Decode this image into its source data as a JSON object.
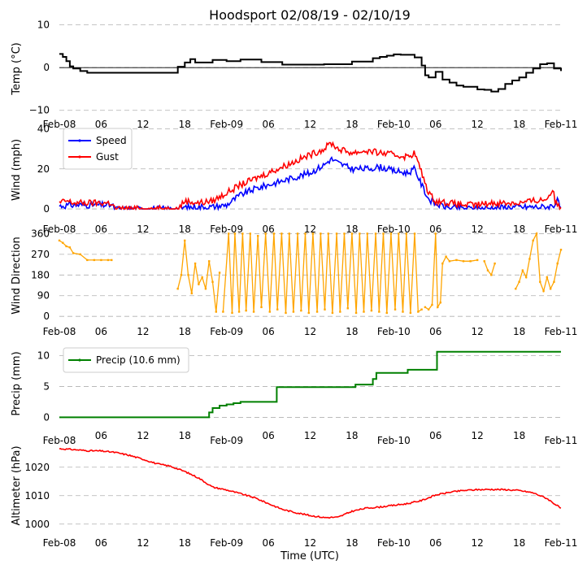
{
  "figure": {
    "title": "Hoodsport 02/08/19 - 02/10/19",
    "xlabel": "Time (UTC)"
  },
  "time_axis": {
    "x_range_hours": [
      0,
      72
    ],
    "ticks": [
      {
        "h": 0,
        "label": "Feb-08",
        "kind": "date"
      },
      {
        "h": 6,
        "label": "06",
        "kind": "hour"
      },
      {
        "h": 12,
        "label": "12",
        "kind": "hour"
      },
      {
        "h": 18,
        "label": "18",
        "kind": "hour"
      },
      {
        "h": 24,
        "label": "Feb-09",
        "kind": "date"
      },
      {
        "h": 30,
        "label": "06",
        "kind": "hour"
      },
      {
        "h": 36,
        "label": "12",
        "kind": "hour"
      },
      {
        "h": 42,
        "label": "18",
        "kind": "hour"
      },
      {
        "h": 48,
        "label": "Feb-10",
        "kind": "date"
      },
      {
        "h": 54,
        "label": "06",
        "kind": "hour"
      },
      {
        "h": 60,
        "label": "12",
        "kind": "hour"
      },
      {
        "h": 66,
        "label": "18",
        "kind": "hour"
      },
      {
        "h": 72,
        "label": "Feb-11",
        "kind": "date"
      }
    ]
  },
  "chart_data": [
    {
      "type": "line",
      "ylabel": "Temp (°C)",
      "ylim": [
        -11,
        10.5
      ],
      "yticks": [
        {
          "v": -10,
          "label": "−10"
        },
        {
          "v": 0,
          "label": "0"
        },
        {
          "v": 10,
          "label": "10"
        }
      ],
      "hline": 0,
      "step": true,
      "series": [
        {
          "name": "Temperature",
          "color": "#000000",
          "x": [
            0,
            0.5,
            1,
            1.5,
            2,
            3,
            4,
            16,
            17,
            18,
            18.8,
            19.5,
            22,
            24,
            26,
            29,
            32,
            38,
            42,
            45,
            46,
            47,
            48,
            49,
            50,
            51,
            52,
            52.5,
            53,
            54,
            55,
            56,
            57,
            58,
            60,
            61,
            62,
            63,
            64,
            65,
            66,
            67,
            68,
            69,
            70,
            71,
            72
          ],
          "values": [
            3.2,
            2.5,
            1.5,
            0.3,
            -0.2,
            -0.8,
            -1.2,
            -1.2,
            0.2,
            1.2,
            2.0,
            1.2,
            1.8,
            1.5,
            1.9,
            1.3,
            0.7,
            0.8,
            1.4,
            2.2,
            2.5,
            2.8,
            3.1,
            3.0,
            3.0,
            2.4,
            0.5,
            -1.8,
            -2.3,
            -1.0,
            -2.8,
            -3.5,
            -4.2,
            -4.5,
            -5.1,
            -5.2,
            -5.6,
            -5.0,
            -3.8,
            -3.0,
            -2.3,
            -1.2,
            -0.2,
            0.8,
            1.0,
            -0.2,
            -0.8
          ]
        }
      ]
    },
    {
      "type": "line",
      "ylabel": "Wind (mph)",
      "ylim": [
        -2,
        41
      ],
      "yticks": [
        {
          "v": 0,
          "label": "0"
        },
        {
          "v": 20,
          "label": "20"
        },
        {
          "v": 40,
          "label": "40"
        }
      ],
      "legend": "top-left",
      "noise": 1.6,
      "series": [
        {
          "name": "Speed",
          "color": "#0000ff",
          "marker": true,
          "x": [
            0,
            2,
            6,
            7.5,
            8,
            17,
            18,
            20,
            22,
            24,
            26,
            28,
            30,
            32,
            34,
            36,
            38,
            39,
            40,
            42,
            44,
            46,
            48,
            50,
            51,
            52,
            53,
            54,
            56,
            58,
            60,
            62,
            64,
            66,
            68,
            70,
            71,
            71.5,
            72
          ],
          "values": [
            1.5,
            2,
            2,
            2,
            0,
            0,
            0.8,
            1,
            1,
            2,
            7,
            10,
            12,
            14,
            16,
            18,
            22,
            25,
            23,
            20,
            20,
            21,
            19,
            18,
            20,
            12,
            5,
            2.5,
            0.5,
            0.3,
            0.2,
            0.5,
            0.8,
            1,
            1,
            1,
            2,
            4,
            0
          ]
        },
        {
          "name": "Gust",
          "color": "#ff0000",
          "marker": true,
          "x": [
            0,
            1,
            2,
            6,
            7.5,
            8,
            17,
            18,
            20,
            22,
            24,
            26,
            28,
            30,
            32,
            34,
            36,
            38,
            39,
            40,
            42,
            44,
            46,
            48,
            50,
            51,
            52,
            53,
            54,
            56,
            58,
            60,
            62,
            64,
            66,
            68,
            70,
            70.8,
            71.2,
            72
          ],
          "values": [
            3,
            4,
            3,
            3,
            3,
            0,
            0,
            4,
            3,
            4,
            8,
            12,
            15,
            18,
            21,
            24,
            27,
            30,
            33,
            30,
            28,
            29,
            28,
            27,
            26,
            28,
            18,
            8,
            4,
            3,
            2,
            2,
            3,
            3,
            3,
            4,
            5,
            10,
            3,
            1
          ]
        }
      ]
    },
    {
      "type": "scatter",
      "ylabel": "Wind Direction",
      "ylim": [
        -10,
        365
      ],
      "yticks": [
        {
          "v": 0,
          "label": "0"
        },
        {
          "v": 90,
          "label": "90"
        },
        {
          "v": 180,
          "label": "180"
        },
        {
          "v": 270,
          "label": "270"
        },
        {
          "v": 360,
          "label": "360"
        }
      ],
      "series": [
        {
          "name": "Direction",
          "color": "#ffa500",
          "segments": [
            {
              "x": [
                0,
                0.5,
                1,
                1.5,
                2,
                3,
                4,
                5,
                6,
                7,
                7.5
              ],
              "values": [
                330,
                320,
                305,
                300,
                275,
                270,
                245,
                245,
                245,
                245,
                245
              ]
            },
            {
              "x": [
                17,
                17.5,
                18,
                18.5,
                19,
                19.5,
                20,
                20.5,
                21,
                21.5,
                22,
                22.5,
                23
              ],
              "values": [
                120,
                180,
                330,
                180,
                100,
                230,
                140,
                170,
                120,
                240,
                150,
                20,
                190
              ]
            },
            {
              "x": [
                23.5,
                24.3,
                24.8,
                25.2,
                25.8,
                26.3,
                26.8,
                27.4,
                27.9,
                28.5,
                29,
                29.6,
                30.2,
                30.8,
                31.3,
                31.9,
                32.5,
                33,
                33.6,
                34.2,
                34.7,
                35.3,
                35.8,
                36.4,
                37,
                37.5,
                38.1,
                38.6,
                39.2,
                39.8,
                40.3,
                40.9,
                41.4,
                42,
                42.6,
                43.1,
                43.7,
                44.2,
                44.8,
                45.4,
                45.9,
                46.5,
                47,
                47.6,
                48.2,
                48.7,
                49.3,
                49.8,
                50.4,
                51,
                51.5,
                52
              ],
              "values": [
                20,
                360,
                15,
                360,
                20,
                360,
                25,
                360,
                20,
                350,
                40,
                360,
                20,
                360,
                30,
                360,
                15,
                360,
                20,
                360,
                25,
                360,
                15,
                360,
                20,
                360,
                30,
                360,
                15,
                360,
                20,
                360,
                35,
                360,
                15,
                360,
                20,
                360,
                25,
                360,
                20,
                360,
                15,
                360,
                30,
                360,
                20,
                360,
                15,
                360,
                20,
                30
              ]
            },
            {
              "x": [
                52.5,
                53,
                53.5,
                54,
                54.3,
                54.7,
                55,
                55.5,
                56,
                57,
                58,
                59,
                60
              ],
              "values": [
                40,
                30,
                50,
                360,
                40,
                60,
                230,
                260,
                240,
                245,
                240,
                240,
                245
              ]
            },
            {
              "x": [
                61,
                61.5,
                62,
                62.5
              ],
              "values": [
                240,
                200,
                180,
                230
              ]
            },
            {
              "x": [
                65.5,
                66,
                66.5,
                67,
                67.5,
                68,
                68.5,
                69,
                69.5,
                70,
                70.5,
                71,
                71.5,
                72
              ],
              "values": [
                120,
                150,
                200,
                170,
                250,
                330,
                360,
                150,
                110,
                170,
                120,
                150,
                230,
                290
              ]
            }
          ]
        }
      ]
    },
    {
      "type": "line",
      "ylabel": "Precip (mm)",
      "ylim": [
        -0.6,
        11.5
      ],
      "yticks": [
        {
          "v": 0,
          "label": "0"
        },
        {
          "v": 5,
          "label": "5"
        },
        {
          "v": 10,
          "label": "10"
        }
      ],
      "legend": "top-left",
      "step": true,
      "series": [
        {
          "name": "Precip (10.6 mm)",
          "color": "#008000",
          "marker": true,
          "x": [
            0,
            21,
            21.5,
            22,
            23,
            24,
            25,
            26,
            27,
            31,
            31.2,
            42,
            42.5,
            44.5,
            45,
            45.5,
            50,
            54,
            54.2,
            72
          ],
          "values": [
            0,
            0,
            0.8,
            1.5,
            1.9,
            2.1,
            2.3,
            2.5,
            2.5,
            2.5,
            4.9,
            4.9,
            5.3,
            5.3,
            6.2,
            7.2,
            7.7,
            7.7,
            10.6,
            10.6
          ]
        }
      ]
    },
    {
      "type": "line",
      "ylabel": "Altimeter (hPa)",
      "ylim": [
        998.5,
        1028.5
      ],
      "yticks": [
        {
          "v": 1000,
          "label": "1000"
        },
        {
          "v": 1010,
          "label": "1010"
        },
        {
          "v": 1020,
          "label": "1020"
        }
      ],
      "noise": 0.25,
      "series": [
        {
          "name": "Altimeter",
          "color": "#ff0000",
          "marker": true,
          "x": [
            0,
            2,
            4,
            6,
            8,
            10,
            12,
            14,
            16,
            18,
            20,
            22,
            24,
            26,
            28,
            30,
            32,
            34,
            36,
            38,
            40,
            42,
            44,
            46,
            48,
            50,
            52,
            54,
            56,
            58,
            60,
            62,
            64,
            66,
            68,
            70,
            72
          ],
          "values": [
            1026.5,
            1026.2,
            1025.8,
            1025.7,
            1025.2,
            1024.2,
            1022.8,
            1021.2,
            1020.3,
            1018.5,
            1016.2,
            1013.0,
            1012.0,
            1010.7,
            1009.3,
            1007.2,
            1005.2,
            1004.0,
            1003.0,
            1002.3,
            1002.4,
            1004.5,
            1005.6,
            1006.0,
            1006.6,
            1007.2,
            1008.3,
            1010.2,
            1011.2,
            1011.8,
            1012.1,
            1012.2,
            1012.1,
            1011.8,
            1011.0,
            1009.0,
            1005.5
          ]
        }
      ]
    }
  ]
}
